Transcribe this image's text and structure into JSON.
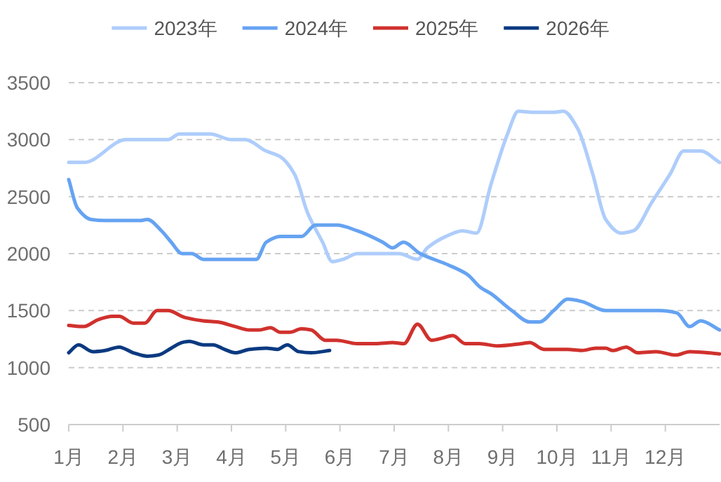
{
  "chart_data": {
    "type": "line",
    "grid": "y",
    "legend": "top",
    "xlim": [
      1,
      13
    ],
    "ylim": [
      500,
      3500
    ],
    "xticks": [
      {
        "value": 1,
        "label": "1月"
      },
      {
        "value": 2,
        "label": "2月"
      },
      {
        "value": 3,
        "label": "3月"
      },
      {
        "value": 4,
        "label": "4月"
      },
      {
        "value": 5,
        "label": "5月"
      },
      {
        "value": 6,
        "label": "6月"
      },
      {
        "value": 7,
        "label": "7月"
      },
      {
        "value": 8,
        "label": "8月"
      },
      {
        "value": 9,
        "label": "9月"
      },
      {
        "value": 10,
        "label": "10月"
      },
      {
        "value": 11,
        "label": "11月"
      },
      {
        "value": 12,
        "label": "12月"
      }
    ],
    "yticks": [
      500,
      1000,
      1500,
      2000,
      2500,
      3000,
      3500
    ],
    "series": [
      {
        "name": "2023年",
        "color": "#aecdfb",
        "x": [
          1.0,
          1.28,
          2.06,
          2.83,
          3.04,
          3.61,
          4.0,
          4.25,
          4.64,
          4.9,
          5.16,
          5.41,
          5.68,
          5.86,
          6.06,
          6.32,
          7.09,
          7.43,
          7.61,
          7.95,
          8.26,
          8.52,
          8.78,
          9.09,
          9.29,
          9.55,
          9.94,
          10.12,
          10.38,
          10.66,
          10.9,
          11.18,
          11.41,
          11.75,
          12.09,
          12.34,
          12.65,
          13.0
        ],
        "values": [
          2800,
          2800,
          3000,
          3000,
          3050,
          3050,
          3000,
          3000,
          2900,
          2850,
          2700,
          2350,
          2100,
          1930,
          1950,
          2000,
          2000,
          1950,
          2050,
          2150,
          2200,
          2180,
          2600,
          3050,
          3250,
          3240,
          3240,
          3250,
          3100,
          2700,
          2300,
          2180,
          2200,
          2450,
          2700,
          2900,
          2900,
          2800
        ]
      },
      {
        "name": "2024年",
        "color": "#66a3f2",
        "x": [
          1.0,
          1.16,
          1.41,
          1.67,
          2.32,
          2.45,
          2.71,
          2.89,
          3.09,
          3.27,
          3.48,
          4.0,
          4.33,
          4.46,
          4.64,
          4.9,
          5.29,
          5.55,
          5.94,
          6.32,
          6.79,
          6.97,
          7.17,
          7.48,
          8.0,
          8.34,
          8.6,
          8.78,
          9.17,
          9.5,
          9.68,
          9.94,
          10.2,
          10.46,
          10.9,
          11.88,
          12.21,
          12.45,
          12.65,
          13.0
        ],
        "values": [
          2650,
          2400,
          2300,
          2290,
          2290,
          2300,
          2200,
          2100,
          2000,
          2000,
          1950,
          1950,
          1950,
          1950,
          2100,
          2150,
          2150,
          2250,
          2250,
          2200,
          2100,
          2050,
          2100,
          2000,
          1900,
          1820,
          1700,
          1650,
          1500,
          1400,
          1400,
          1500,
          1600,
          1580,
          1500,
          1500,
          1480,
          1360,
          1410,
          1330
        ]
      },
      {
        "name": "2025年",
        "color": "#d0312d",
        "x": [
          1.0,
          1.28,
          1.54,
          1.8,
          1.93,
          2.19,
          2.4,
          2.63,
          2.83,
          3.14,
          3.48,
          3.74,
          4.07,
          4.33,
          4.51,
          4.72,
          4.9,
          5.08,
          5.29,
          5.47,
          5.73,
          5.94,
          6.32,
          6.66,
          6.97,
          7.18,
          7.43,
          7.69,
          7.9,
          8.08,
          8.31,
          8.57,
          8.91,
          9.35,
          9.5,
          9.76,
          10.2,
          10.46,
          10.72,
          10.9,
          11.03,
          11.28,
          11.49,
          11.83,
          12.19,
          12.45,
          13.0
        ],
        "values": [
          1370,
          1360,
          1420,
          1450,
          1450,
          1390,
          1390,
          1500,
          1500,
          1440,
          1410,
          1400,
          1360,
          1330,
          1330,
          1350,
          1310,
          1310,
          1340,
          1330,
          1240,
          1240,
          1210,
          1210,
          1220,
          1210,
          1380,
          1240,
          1260,
          1280,
          1210,
          1210,
          1190,
          1210,
          1220,
          1160,
          1160,
          1150,
          1170,
          1170,
          1150,
          1180,
          1130,
          1140,
          1110,
          1140,
          1120
        ]
      },
      {
        "name": "2026年",
        "color": "#0b3a80",
        "x": [
          1.0,
          1.18,
          1.44,
          1.67,
          1.93,
          2.19,
          2.45,
          2.65,
          2.89,
          3.09,
          3.22,
          3.48,
          3.66,
          3.87,
          4.07,
          4.33,
          4.64,
          4.85,
          5.03,
          5.24,
          5.47,
          5.81
        ],
        "values": [
          1130,
          1200,
          1140,
          1150,
          1180,
          1130,
          1100,
          1110,
          1170,
          1220,
          1230,
          1200,
          1200,
          1160,
          1130,
          1160,
          1170,
          1160,
          1200,
          1140,
          1130,
          1150
        ]
      }
    ]
  }
}
